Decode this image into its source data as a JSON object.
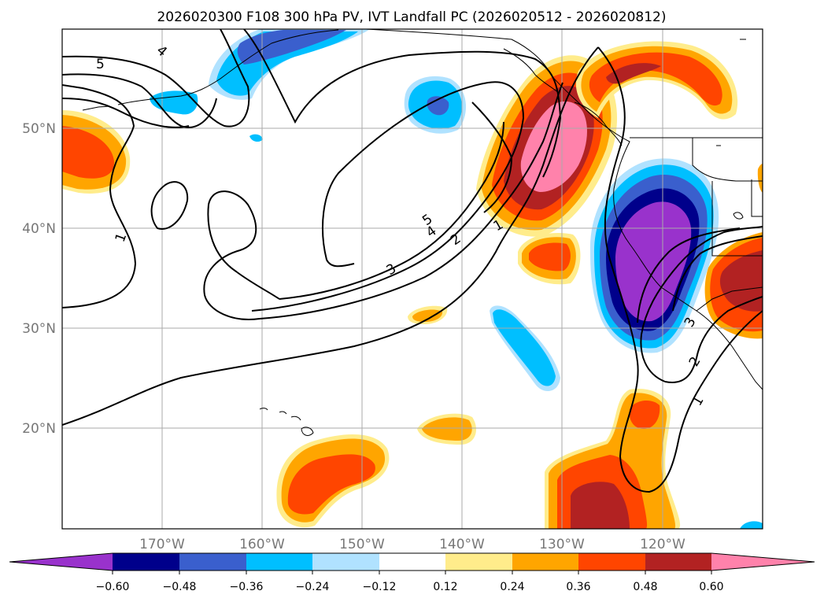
{
  "title": "2026020300 F108 300 hPa PV, IVT Landfall PC (2026020512 - 2026020812)",
  "colors": {
    "neg_lt": "#9932cc",
    "neg_060": "#00008b",
    "neg_048": "#3a5fcd",
    "neg_036": "#00bfff",
    "neg_024": "#b0e2ff",
    "neutral": "#ffffff",
    "pos_012": "#ffec8b",
    "pos_024": "#ffa500",
    "pos_036": "#ff4500",
    "pos_048": "#b22222",
    "pos_gt": "#ff82ab"
  },
  "axes": {
    "lon_range": [
      -180,
      -110
    ],
    "lat_range": [
      10,
      60
    ],
    "x_ticks": [
      "170°W",
      "160°W",
      "150°W",
      "140°W",
      "130°W",
      "120°W"
    ],
    "y_ticks": [
      "50°N",
      "40°N",
      "30°N",
      "20°N"
    ]
  },
  "colorbar": {
    "levels": [
      "−0.60",
      "−0.48",
      "−0.36",
      "−0.24",
      "−0.12",
      "0.12",
      "0.24",
      "0.36",
      "0.48",
      "0.60"
    ]
  },
  "contour_labels": {
    "c5a": "5",
    "c4a": "4",
    "c1a": "1",
    "c5b": "5",
    "c4b": "4",
    "c2a": "2",
    "c1b": "1",
    "c3a": "3",
    "c3b": "3",
    "c2b": "2",
    "c1c": "1"
  }
}
